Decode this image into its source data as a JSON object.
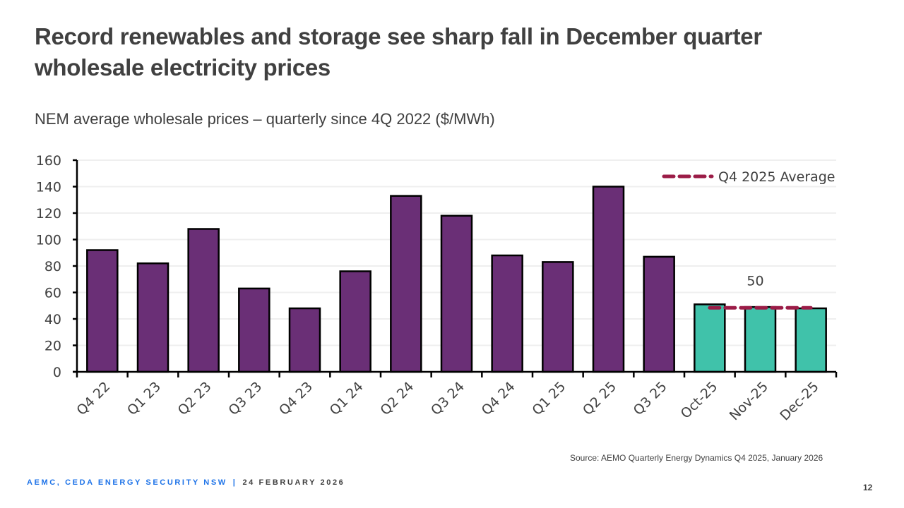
{
  "slide": {
    "title": "Record renewables and storage see sharp fall in December quarter wholesale electricity prices",
    "subtitle": "NEM average wholesale prices – quarterly since 4Q 2022 ($/MWh)",
    "source": "Source: AEMO Quarterly Energy Dynamics Q4 2025, January 2026",
    "footer_org": "AEMC, CEDA ENERGY SECURITY NSW",
    "footer_sep": "|",
    "footer_date": "24 FEBRUARY 2026",
    "page_number": "12"
  },
  "chart_data": {
    "type": "bar",
    "title": "NEM average wholesale prices – quarterly since 4Q 2022 ($/MWh)",
    "xlabel": "",
    "ylabel": "",
    "ylim": [
      0,
      160
    ],
    "yticks": [
      0,
      20,
      40,
      60,
      80,
      100,
      120,
      140,
      160
    ],
    "grid": true,
    "categories": [
      "Q4 22",
      "Q1 23",
      "Q2 23",
      "Q3 23",
      "Q4 23",
      "Q1 24",
      "Q2 24",
      "Q3 24",
      "Q4 24",
      "Q1 25",
      "Q2 25",
      "Q3 25",
      "Oct-25",
      "Nov-25",
      "Dec-25"
    ],
    "values": [
      92,
      82,
      108,
      63,
      48,
      76,
      133,
      118,
      88,
      83,
      140,
      87,
      51,
      49,
      48
    ],
    "bar_groups": [
      "quarterly",
      "quarterly",
      "quarterly",
      "quarterly",
      "quarterly",
      "quarterly",
      "quarterly",
      "quarterly",
      "quarterly",
      "quarterly",
      "quarterly",
      "quarterly",
      "monthly",
      "monthly",
      "monthly"
    ],
    "colors": {
      "quarterly": "#6a2f76",
      "monthly": "#40c2aa",
      "average_line": "#9b1c47",
      "outline": "#000000",
      "gridline": "#efefef",
      "text": "#404040"
    },
    "average_line": {
      "label": "Q4 2025 Average",
      "value": 50,
      "value_label": "50",
      "categories": [
        "Oct-25",
        "Nov-25",
        "Dec-25"
      ]
    },
    "legend": {
      "entries": [
        "Q4 2025 Average"
      ],
      "placement": "top-right"
    }
  }
}
